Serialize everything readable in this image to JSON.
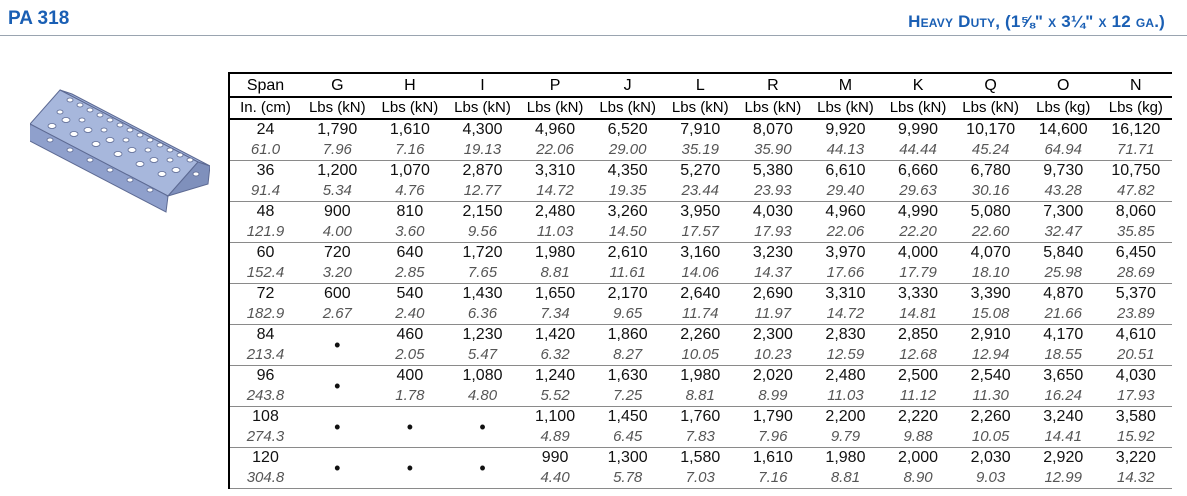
{
  "header": {
    "model": "PA 318",
    "subtitle": "Heavy Duty, (1⅝\" x 3¼\"  x 12 ga.)"
  },
  "illustration": {
    "icon": "perforated-angle-channel-icon",
    "colors": {
      "top": "#a7b7dc",
      "side": "#8fa0cc",
      "edge": "#5d6a93",
      "hole": "#ffffff"
    }
  },
  "table": {
    "headers_row1": [
      "Span",
      "G",
      "H",
      "I",
      "P",
      "J",
      "L",
      "R",
      "M",
      "K",
      "Q",
      "O",
      "N"
    ],
    "headers_row2": [
      "In. (cm)",
      "Lbs (kN)",
      "Lbs (kN)",
      "Lbs (kN)",
      "Lbs (kN)",
      "Lbs (kN)",
      "Lbs (kN)",
      "Lbs (kN)",
      "Lbs (kN)",
      "Lbs (kN)",
      "Lbs (kN)",
      "Lbs (kg)",
      "Lbs (kg)"
    ],
    "rows": [
      {
        "span_in": "24",
        "span_cm": "61.0",
        "cells": [
          [
            "1,790",
            "7.96"
          ],
          [
            "1,610",
            "7.16"
          ],
          [
            "4,300",
            "19.13"
          ],
          [
            "4,960",
            "22.06"
          ],
          [
            "6,520",
            "29.00"
          ],
          [
            "7,910",
            "35.19"
          ],
          [
            "8,070",
            "35.90"
          ],
          [
            "9,920",
            "44.13"
          ],
          [
            "9,990",
            "44.44"
          ],
          [
            "10,170",
            "45.24"
          ],
          [
            "14,600",
            "64.94"
          ],
          [
            "16,120",
            "71.71"
          ]
        ]
      },
      {
        "span_in": "36",
        "span_cm": "91.4",
        "cells": [
          [
            "1,200",
            "5.34"
          ],
          [
            "1,070",
            "4.76"
          ],
          [
            "2,870",
            "12.77"
          ],
          [
            "3,310",
            "14.72"
          ],
          [
            "4,350",
            "19.35"
          ],
          [
            "5,270",
            "23.44"
          ],
          [
            "5,380",
            "23.93"
          ],
          [
            "6,610",
            "29.40"
          ],
          [
            "6,660",
            "29.63"
          ],
          [
            "6,780",
            "30.16"
          ],
          [
            "9,730",
            "43.28"
          ],
          [
            "10,750",
            "47.82"
          ]
        ]
      },
      {
        "span_in": "48",
        "span_cm": "121.9",
        "cells": [
          [
            "900",
            "4.00"
          ],
          [
            "810",
            "3.60"
          ],
          [
            "2,150",
            "9.56"
          ],
          [
            "2,480",
            "11.03"
          ],
          [
            "3,260",
            "14.50"
          ],
          [
            "3,950",
            "17.57"
          ],
          [
            "4,030",
            "17.93"
          ],
          [
            "4,960",
            "22.06"
          ],
          [
            "4,990",
            "22.20"
          ],
          [
            "5,080",
            "22.60"
          ],
          [
            "7,300",
            "32.47"
          ],
          [
            "8,060",
            "35.85"
          ]
        ]
      },
      {
        "span_in": "60",
        "span_cm": "152.4",
        "cells": [
          [
            "720",
            "3.20"
          ],
          [
            "640",
            "2.85"
          ],
          [
            "1,720",
            "7.65"
          ],
          [
            "1,980",
            "8.81"
          ],
          [
            "2,610",
            "11.61"
          ],
          [
            "3,160",
            "14.06"
          ],
          [
            "3,230",
            "14.37"
          ],
          [
            "3,970",
            "17.66"
          ],
          [
            "4,000",
            "17.79"
          ],
          [
            "4,070",
            "18.10"
          ],
          [
            "5,840",
            "25.98"
          ],
          [
            "6,450",
            "28.69"
          ]
        ]
      },
      {
        "span_in": "72",
        "span_cm": "182.9",
        "cells": [
          [
            "600",
            "2.67"
          ],
          [
            "540",
            "2.40"
          ],
          [
            "1,430",
            "6.36"
          ],
          [
            "1,650",
            "7.34"
          ],
          [
            "2,170",
            "9.65"
          ],
          [
            "2,640",
            "11.74"
          ],
          [
            "2,690",
            "11.97"
          ],
          [
            "3,310",
            "14.72"
          ],
          [
            "3,330",
            "14.81"
          ],
          [
            "3,390",
            "15.08"
          ],
          [
            "4,870",
            "21.66"
          ],
          [
            "5,370",
            "23.89"
          ]
        ]
      },
      {
        "span_in": "84",
        "span_cm": "213.4",
        "cells": [
          [
            "•",
            ""
          ],
          [
            "460",
            "2.05"
          ],
          [
            "1,230",
            "5.47"
          ],
          [
            "1,420",
            "6.32"
          ],
          [
            "1,860",
            "8.27"
          ],
          [
            "2,260",
            "10.05"
          ],
          [
            "2,300",
            "10.23"
          ],
          [
            "2,830",
            "12.59"
          ],
          [
            "2,850",
            "12.68"
          ],
          [
            "2,910",
            "12.94"
          ],
          [
            "4,170",
            "18.55"
          ],
          [
            "4,610",
            "20.51"
          ]
        ]
      },
      {
        "span_in": "96",
        "span_cm": "243.8",
        "cells": [
          [
            "•",
            ""
          ],
          [
            "400",
            "1.78"
          ],
          [
            "1,080",
            "4.80"
          ],
          [
            "1,240",
            "5.52"
          ],
          [
            "1,630",
            "7.25"
          ],
          [
            "1,980",
            "8.81"
          ],
          [
            "2,020",
            "8.99"
          ],
          [
            "2,480",
            "11.03"
          ],
          [
            "2,500",
            "11.12"
          ],
          [
            "2,540",
            "11.30"
          ],
          [
            "3,650",
            "16.24"
          ],
          [
            "4,030",
            "17.93"
          ]
        ]
      },
      {
        "span_in": "108",
        "span_cm": "274.3",
        "cells": [
          [
            "•",
            ""
          ],
          [
            "•",
            ""
          ],
          [
            "•",
            ""
          ],
          [
            "1,100",
            "4.89"
          ],
          [
            "1,450",
            "6.45"
          ],
          [
            "1,760",
            "7.83"
          ],
          [
            "1,790",
            "7.96"
          ],
          [
            "2,200",
            "9.79"
          ],
          [
            "2,220",
            "9.88"
          ],
          [
            "2,260",
            "10.05"
          ],
          [
            "3,240",
            "14.41"
          ],
          [
            "3,580",
            "15.92"
          ]
        ]
      },
      {
        "span_in": "120",
        "span_cm": "304.8",
        "cells": [
          [
            "•",
            ""
          ],
          [
            "•",
            ""
          ],
          [
            "•",
            ""
          ],
          [
            "990",
            "4.40"
          ],
          [
            "1,300",
            "5.78"
          ],
          [
            "1,580",
            "7.03"
          ],
          [
            "1,610",
            "7.16"
          ],
          [
            "1,980",
            "8.81"
          ],
          [
            "2,000",
            "8.90"
          ],
          [
            "2,030",
            "9.03"
          ],
          [
            "2,920",
            "12.99"
          ],
          [
            "3,220",
            "14.32"
          ]
        ]
      }
    ]
  }
}
